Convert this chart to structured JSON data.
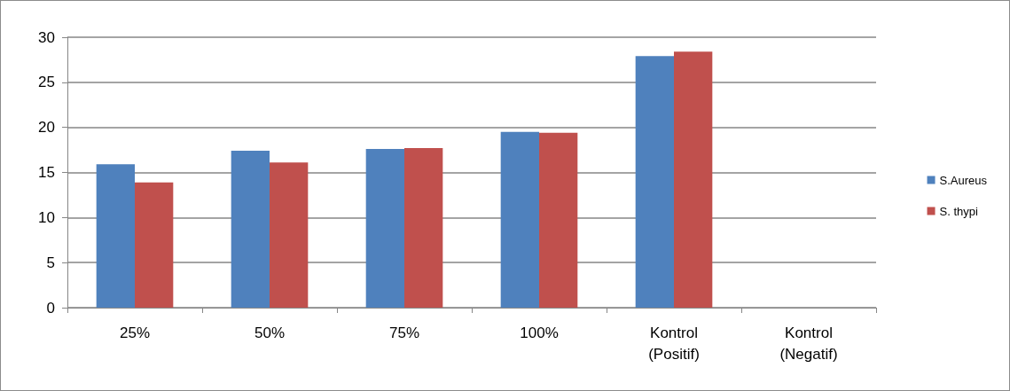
{
  "chart_data": {
    "type": "bar",
    "categories": [
      "25%",
      "50%",
      "75%",
      "100%",
      "Kontrol\n(Positif)",
      "Kontrol\n(Negatif)"
    ],
    "series": [
      {
        "name": "S.Aureus",
        "color": "#4f81bd",
        "values": [
          15.9,
          17.4,
          17.6,
          19.5,
          27.9,
          0
        ]
      },
      {
        "name": "S. thypi",
        "color": "#c0504d",
        "values": [
          13.9,
          16.1,
          17.7,
          19.4,
          28.4,
          0
        ]
      }
    ],
    "ylim": [
      0,
      30
    ],
    "yticks": [
      0,
      5,
      10,
      15,
      20,
      25,
      30
    ],
    "grid": "y",
    "legend": "right"
  }
}
